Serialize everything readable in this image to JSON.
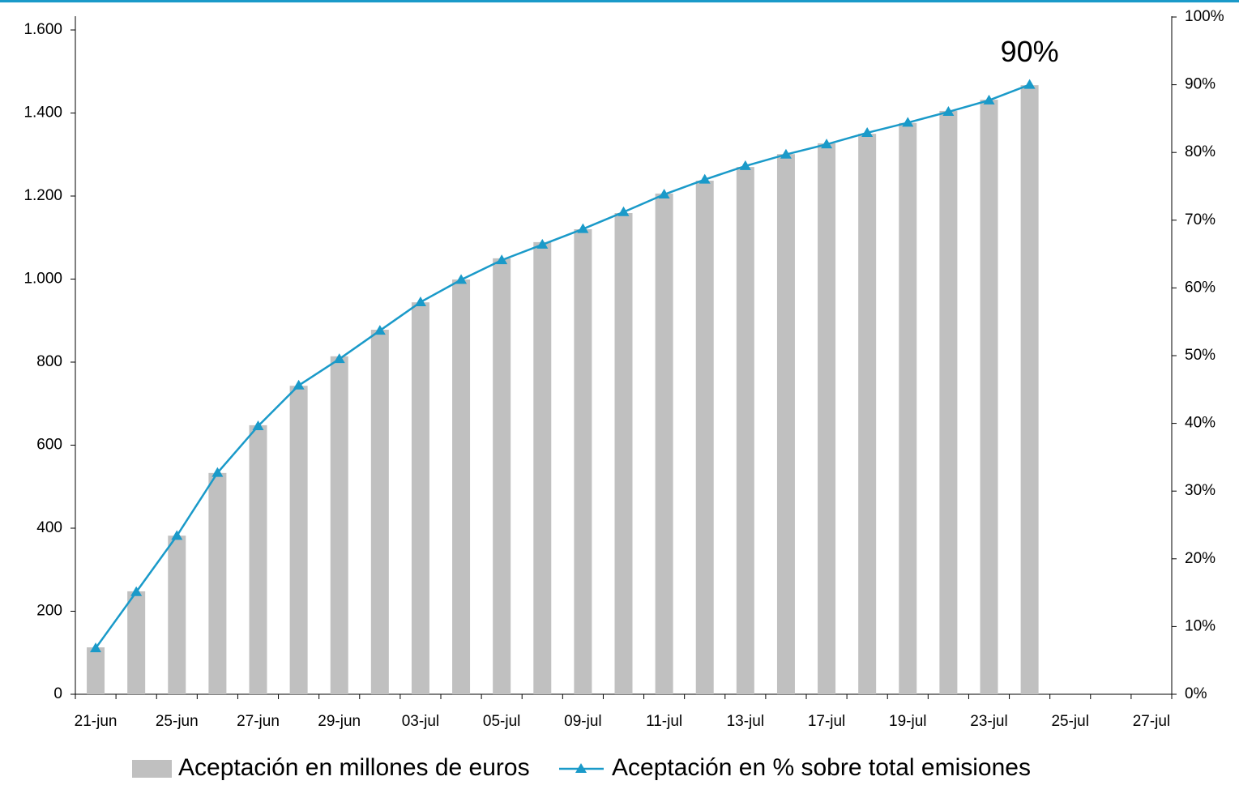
{
  "chart_data": {
    "type": "bar_line",
    "categories": [
      "21-jun",
      null,
      "25-jun",
      null,
      "27-jun",
      null,
      "29-jun",
      null,
      "03-jul",
      null,
      "05-jul",
      null,
      "09-jul",
      null,
      "11-jul",
      null,
      "13-jul",
      null,
      "17-jul",
      null,
      "19-jul",
      null,
      "23-jul",
      null,
      "25-jul",
      null,
      "27-jul"
    ],
    "series": [
      {
        "name": "Aceptación en millones de euros",
        "color": "#c0c0c0",
        "type": "bar",
        "values": [
          113,
          248,
          382,
          533,
          648,
          743,
          814,
          878,
          944,
          999,
          1050,
          1089,
          1120,
          1159,
          1206,
          1237,
          1270,
          1301,
          1327,
          1350,
          1376,
          1405,
          1432,
          1467,
          null,
          null,
          null
        ]
      },
      {
        "name": "Aceptación en % sobre total emisiones",
        "color": "#1a9ac9",
        "type": "line",
        "axis": "y2",
        "values": [
          6.8,
          15.1,
          23.4,
          32.7,
          39.6,
          45.6,
          49.5,
          53.7,
          57.9,
          61.2,
          64.1,
          66.4,
          68.7,
          71.2,
          73.8,
          76,
          78,
          79.7,
          81.2,
          82.9,
          84.4,
          86,
          87.7,
          90,
          null,
          null,
          null
        ]
      }
    ],
    "annotations": [
      {
        "text": "90%",
        "series": 1,
        "index": 23
      }
    ],
    "ylim": [
      0,
      1600
    ],
    "yticks": [
      0,
      200,
      400,
      600,
      800,
      {
        "value": 1000,
        "label": "1.000"
      },
      {
        "value": 1200,
        "label": "1.200"
      },
      {
        "value": 1400,
        "label": "1.400"
      },
      {
        "value": 1600,
        "label": "1.600"
      }
    ],
    "y2lim": [
      0,
      100
    ],
    "y2ticks": [
      {
        "value": 0,
        "label": "0%"
      },
      {
        "value": 10,
        "label": "10%"
      },
      {
        "value": 20,
        "label": "20%"
      },
      {
        "value": 30,
        "label": "30%"
      },
      {
        "value": 40,
        "label": "40%"
      },
      {
        "value": 50,
        "label": "50%"
      },
      {
        "value": 60,
        "label": "60%"
      },
      {
        "value": 70,
        "label": "70%"
      },
      {
        "value": 80,
        "label": "80%"
      },
      {
        "value": 90,
        "label": "90%"
      },
      {
        "value": 100,
        "label": "100%"
      }
    ],
    "legend": "bottom"
  }
}
